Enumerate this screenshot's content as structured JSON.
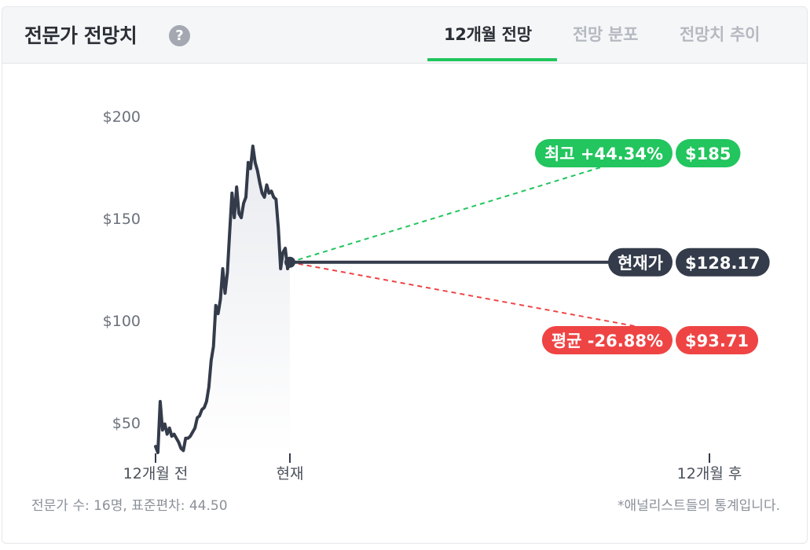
{
  "header": {
    "title": "전문가 전망치",
    "help_icon": "?",
    "tabs": [
      {
        "label": "12개월 전망",
        "active": true
      },
      {
        "label": "전망 분포",
        "active": false
      },
      {
        "label": "전망치 추이",
        "active": false
      }
    ]
  },
  "chart_data": {
    "type": "line",
    "y_ticks": [
      "$200",
      "$150",
      "$100",
      "$50"
    ],
    "y_tick_values": [
      200,
      150,
      100,
      50
    ],
    "ylim": [
      35,
      210
    ],
    "x_ticks": [
      "12개월 전",
      "현재",
      "12개월 후"
    ],
    "price_history": [
      38,
      35,
      60,
      46,
      49,
      44,
      47,
      43,
      44,
      42,
      40,
      37,
      36,
      42,
      42,
      43,
      45,
      47,
      52,
      53,
      56,
      57,
      60,
      67,
      80,
      87,
      107,
      103,
      110,
      125,
      113,
      123,
      143,
      162,
      150,
      165,
      152,
      150,
      157,
      160,
      177,
      174,
      185,
      177,
      173,
      167,
      162,
      160,
      166,
      162,
      163,
      160,
      159,
      145,
      125,
      133,
      135,
      125,
      128
    ],
    "projections": [
      {
        "label": "최고 +44.34%",
        "value_label": "$185",
        "value": 185,
        "color": "#22c55e"
      },
      {
        "label": "현재가",
        "value_label": "$128.17",
        "value": 128.17,
        "color": "#343b4a"
      },
      {
        "label": "평균 -26.88%",
        "value_label": "$93.71",
        "value": 93.71,
        "color": "#ef4444"
      }
    ]
  },
  "footer": {
    "analysts": "전문가 수: 16명, 표준편차: 44.50",
    "note": "*애널리스트들의 통계입니다."
  }
}
